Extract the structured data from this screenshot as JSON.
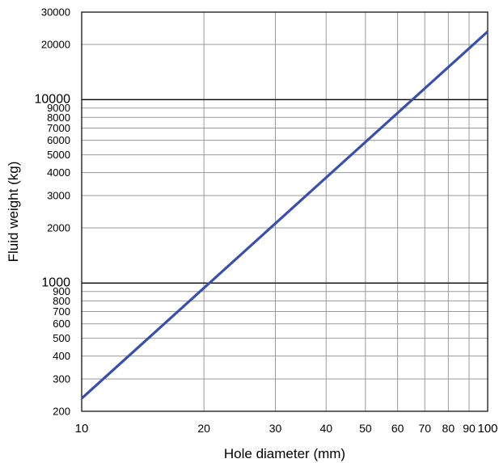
{
  "chart_data": {
    "type": "line",
    "title": "",
    "xlabel": "Hole diameter (mm)",
    "ylabel": "Fluid weight (kg)",
    "x_scale": "log",
    "y_scale": "log",
    "xlim": [
      10,
      100
    ],
    "ylim": [
      200,
      30000
    ],
    "grid": true,
    "x_ticks": [
      10,
      20,
      30,
      40,
      50,
      60,
      70,
      80,
      90,
      100
    ],
    "x_tick_labels": [
      "10",
      "20",
      "30",
      "40",
      "50",
      "60",
      "70",
      "80",
      "90",
      "100"
    ],
    "y_ticks": [
      200,
      300,
      400,
      500,
      600,
      700,
      800,
      900,
      1000,
      2000,
      3000,
      4000,
      5000,
      6000,
      7000,
      8000,
      9000,
      10000,
      20000,
      30000
    ],
    "y_tick_labels": [
      "200",
      "300",
      "400",
      "500",
      "600",
      "700",
      "800",
      "900",
      "1000",
      "2000",
      "3000",
      "4000",
      "5000",
      "6000",
      "7000",
      "8000",
      "9000",
      "10000",
      "20000",
      "30000"
    ],
    "y_major_ticks": [
      1000,
      10000
    ],
    "series": [
      {
        "color": "#3a4fa8",
        "x": [
          10,
          100
        ],
        "y": [
          235,
          23500
        ]
      }
    ]
  }
}
